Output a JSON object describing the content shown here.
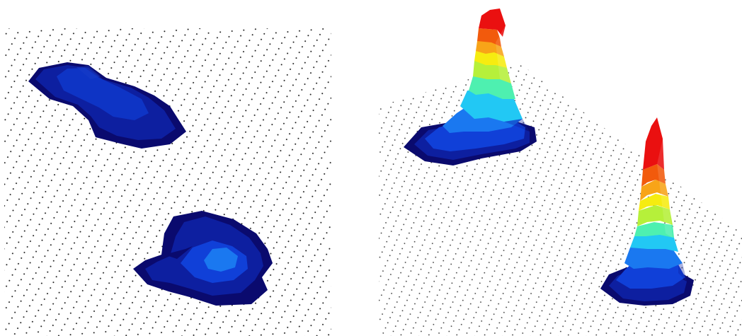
{
  "image": {
    "background": "#ffffff",
    "dot_color": "#1a1a1a",
    "colormap": [
      "#0a0a6e",
      "#0d1fa0",
      "#1040d8",
      "#1a78f0",
      "#22c8f4",
      "#4ef0b0",
      "#b6f03a",
      "#f6ec10",
      "#f8a418",
      "#f25a0c",
      "#ea1010"
    ]
  },
  "panels": [
    {
      "name": "left-panel",
      "view": "top-down",
      "blob_count": 2
    },
    {
      "name": "right-panel",
      "view": "perspective-3d",
      "peak_count": 2
    }
  ]
}
